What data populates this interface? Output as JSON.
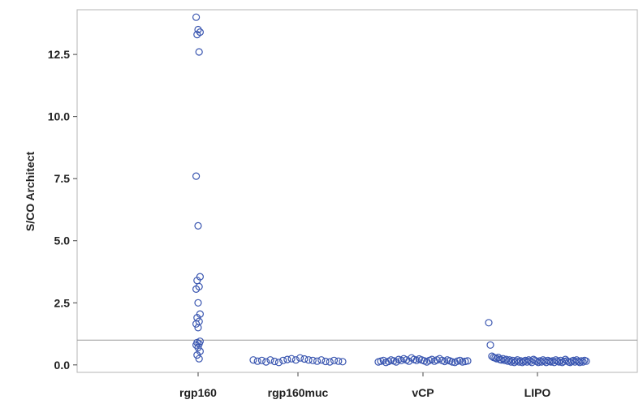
{
  "chart_data": {
    "type": "scatter",
    "title": "",
    "xlabel": "",
    "ylabel": "S/CO Architect",
    "categories": [
      "rgp160",
      "rgp160muc",
      "vCP",
      "LIPO"
    ],
    "ylim": [
      -0.3,
      14.3
    ],
    "yticks": [
      0.0,
      2.5,
      5.0,
      7.5,
      10.0,
      12.5
    ],
    "ytick_labels": [
      "0.0",
      "2.5",
      "5.0",
      "7.5",
      "10.0",
      "12.5"
    ],
    "reference_line": 1.0,
    "grid": false,
    "marker_color": "#3a56b0",
    "series": [
      {
        "category": "rgp160",
        "values": [
          14.0,
          13.5,
          13.4,
          13.3,
          12.6,
          7.6,
          5.6,
          3.55,
          3.4,
          3.15,
          3.05,
          2.5,
          2.05,
          1.9,
          1.75,
          1.65,
          1.5,
          0.95,
          0.9,
          0.85,
          0.8,
          0.7,
          0.55,
          0.4,
          0.25
        ]
      },
      {
        "category": "rgp160muc",
        "values": [
          0.2,
          0.15,
          0.18,
          0.12,
          0.2,
          0.14,
          0.1,
          0.18,
          0.22,
          0.25,
          0.2,
          0.28,
          0.24,
          0.2,
          0.18,
          0.15,
          0.2,
          0.14,
          0.12,
          0.18,
          0.15,
          0.13
        ]
      },
      {
        "category": "vCP",
        "values": [
          0.12,
          0.15,
          0.18,
          0.1,
          0.14,
          0.2,
          0.16,
          0.12,
          0.22,
          0.18,
          0.25,
          0.2,
          0.15,
          0.28,
          0.22,
          0.18,
          0.24,
          0.2,
          0.16,
          0.12,
          0.18,
          0.22,
          0.15,
          0.2,
          0.25,
          0.18,
          0.14,
          0.2,
          0.16,
          0.12,
          0.1,
          0.15,
          0.18,
          0.12,
          0.14,
          0.16
        ]
      },
      {
        "category": "LIPO",
        "values": [
          1.7,
          0.8,
          0.35,
          0.3,
          0.28,
          0.25,
          0.3,
          0.22,
          0.2,
          0.25,
          0.18,
          0.22,
          0.15,
          0.2,
          0.12,
          0.18,
          0.1,
          0.15,
          0.2,
          0.12,
          0.16,
          0.1,
          0.14,
          0.18,
          0.12,
          0.2,
          0.15,
          0.1,
          0.22,
          0.18,
          0.14,
          0.1,
          0.16,
          0.12,
          0.2,
          0.15,
          0.1,
          0.18,
          0.14,
          0.12,
          0.16,
          0.1,
          0.2,
          0.15,
          0.12,
          0.18,
          0.1,
          0.14,
          0.22,
          0.16,
          0.12,
          0.1,
          0.15,
          0.18,
          0.12,
          0.2,
          0.14,
          0.1,
          0.16,
          0.12,
          0.18,
          0.15
        ]
      }
    ]
  }
}
